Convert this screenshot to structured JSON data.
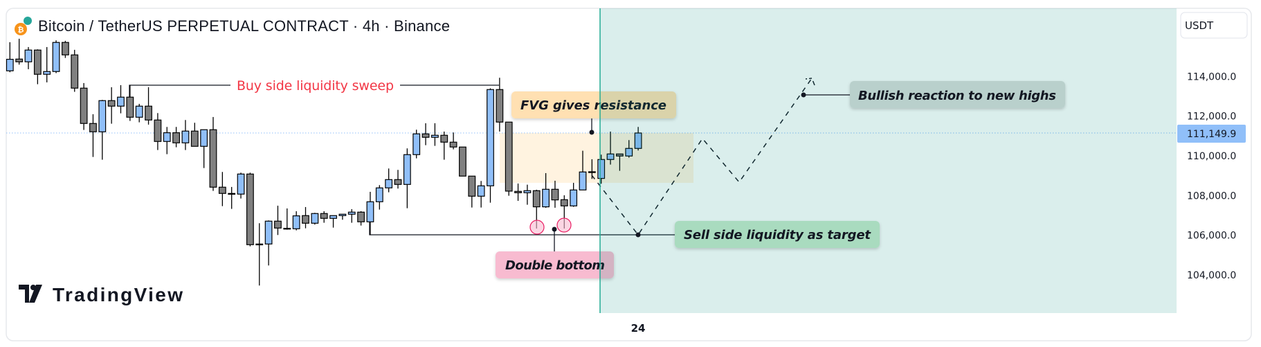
{
  "header": {
    "title": "Bitcoin / TetherUS PERPETUAL CONTRACT · 4h · Binance",
    "currency_button": "USDT",
    "logo_text": "TradingView"
  },
  "annotations": {
    "buy_side": "Buy side liquidity sweep",
    "fvg": "FVG gives resistance",
    "double_bottom": "Double bottom",
    "sell_side": "Sell side liquidity as target",
    "bullish": "Bullish reaction to new highs"
  },
  "colors": {
    "up": "#90bff9",
    "down": "#808080",
    "label_buy_side": "#f23645",
    "fvg_box": "#ffe0b2",
    "double_bottom_box": "#f8bbd0",
    "sell_side_box": "#a5d6b7",
    "bullish_box": "#b7cfcb",
    "projection_zone": "#d9efeb",
    "current_price": "#90bff9"
  },
  "chart_data": {
    "type": "candlestick",
    "title": "Bitcoin / TetherUS PERPETUAL CONTRACT · 4h · Binance",
    "ylabel": "USDT",
    "ylim": [
      102080,
      117430
    ],
    "yticks": [
      "114,000.0",
      "112,000.0",
      "110,000.0",
      "108,000.0",
      "106,000.0",
      "104,000.0"
    ],
    "ytick_values": [
      114000,
      112000,
      110000,
      108000,
      106000,
      104000
    ],
    "xticks": [
      {
        "label": "24",
        "index": 68
      }
    ],
    "current_price": 111149.9,
    "current_price_label": "111,149.9",
    "candles_ohlc": [
      [
        114281,
        115723,
        114211,
        114863
      ],
      [
        114874,
        115898,
        114595,
        114735
      ],
      [
        114735,
        115479,
        114363,
        115328
      ],
      [
        115328,
        115363,
        113607,
        114107
      ],
      [
        114107,
        115479,
        113700,
        114246
      ],
      [
        114246,
        115816,
        114165,
        115712
      ],
      [
        115712,
        115793,
        114932,
        115084
      ],
      [
        115084,
        115340,
        113223,
        113409
      ],
      [
        113409,
        113665,
        111304,
        111630
      ],
      [
        111630,
        112095,
        109943,
        111211
      ],
      [
        111211,
        112816,
        109804,
        112781
      ],
      [
        112781,
        113456,
        111618,
        112502
      ],
      [
        112502,
        113560,
        112141,
        112956
      ],
      [
        112956,
        113560,
        111758,
        111944
      ],
      [
        111944,
        112618,
        111688,
        112502
      ],
      [
        112502,
        113456,
        111572,
        111804
      ],
      [
        111804,
        112153,
        110292,
        110723
      ],
      [
        110723,
        111455,
        110083,
        111164
      ],
      [
        111164,
        111455,
        110432,
        110653
      ],
      [
        110653,
        111804,
        110292,
        111246
      ],
      [
        111246,
        111665,
        110478,
        110478
      ],
      [
        110478,
        111316,
        109385,
        111316
      ],
      [
        111316,
        111955,
        108234,
        108420
      ],
      [
        108420,
        109187,
        107466,
        108106
      ],
      [
        108106,
        108432,
        107327,
        108106
      ],
      [
        108071,
        109152,
        107850,
        109083
      ],
      [
        109083,
        109152,
        105442,
        105524
      ],
      [
        105558,
        106606,
        103466,
        105558
      ],
      [
        105558,
        106745,
        104477,
        106710
      ],
      [
        106710,
        107489,
        106012,
        106361
      ],
      [
        106350,
        107350,
        106280,
        106350
      ],
      [
        106326,
        107210,
        106245,
        106978
      ],
      [
        106989,
        107420,
        106350,
        106605
      ],
      [
        106605,
        107129,
        106536,
        107094
      ],
      [
        107094,
        107210,
        106629,
        106850
      ],
      [
        106850,
        106989,
        106384,
        106989
      ],
      [
        106989,
        107059,
        106780,
        107059
      ],
      [
        107059,
        107315,
        106629,
        107164
      ],
      [
        107164,
        107210,
        106489,
        106675
      ],
      [
        106675,
        108187,
        106012,
        107687
      ],
      [
        107687,
        108525,
        107292,
        108385
      ],
      [
        108385,
        109361,
        108164,
        108803
      ],
      [
        108803,
        109292,
        108350,
        108559
      ],
      [
        108559,
        110374,
        107361,
        110060
      ],
      [
        110060,
        111316,
        109873,
        111106
      ],
      [
        111106,
        111641,
        110536,
        110932
      ],
      [
        110932,
        111641,
        110502,
        111036
      ],
      [
        111036,
        111222,
        109804,
        110688
      ],
      [
        110688,
        111176,
        110327,
        110443
      ],
      [
        110443,
        110443,
        108978,
        108978
      ],
      [
        108978,
        108978,
        107396,
        107966
      ],
      [
        107966,
        108734,
        107396,
        108489
      ],
      [
        108489,
        113400,
        107640,
        113339
      ],
      [
        113339,
        113932,
        111222,
        111699
      ],
      [
        111699,
        111699,
        107989,
        108222
      ],
      [
        108210,
        108605,
        107733,
        108140
      ],
      [
        108140,
        108547,
        107536,
        108245
      ],
      [
        108245,
        108292,
        106338,
        107431
      ],
      [
        107431,
        109129,
        107385,
        108315
      ],
      [
        108315,
        108745,
        107385,
        107780
      ],
      [
        107791,
        108013,
        106338,
        107477
      ],
      [
        107477,
        108640,
        107431,
        108280
      ],
      [
        108280,
        110257,
        108280,
        109187
      ],
      [
        109199,
        109827,
        108838,
        109199
      ],
      [
        108861,
        110059,
        108594,
        109815
      ],
      [
        109815,
        111222,
        109559,
        110094
      ],
      [
        110094,
        110094,
        109245,
        109990
      ],
      [
        109990,
        110792,
        109908,
        110373
      ],
      [
        110373,
        111455,
        110268,
        111150
      ]
    ],
    "fvg_zone": [
      108400,
      110950
    ],
    "sell_side_level": 106010,
    "projection_path_prices": [
      108950,
      106010,
      110200,
      107950,
      114150
    ]
  }
}
